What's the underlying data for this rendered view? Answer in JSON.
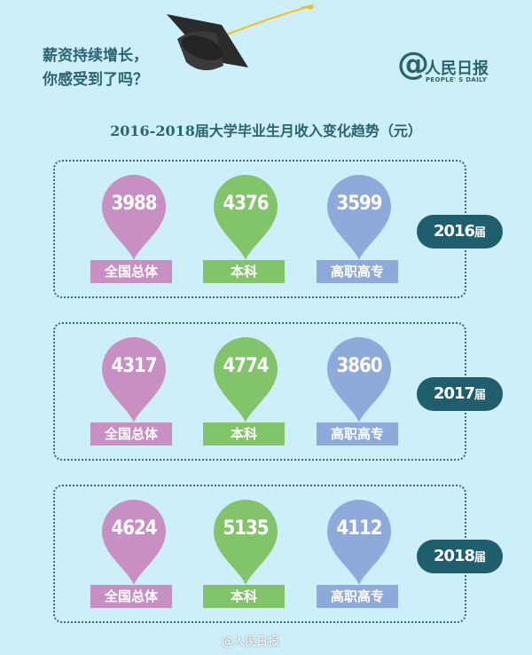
{
  "header": {
    "slogan_line1": "薪资持续增长，",
    "slogan_line2": "你感受到了吗？",
    "logo_name": "人民日报",
    "logo_en": "PEOPLE' S DAILY",
    "title": "2016-2018届大学毕业生月收入变化趋势（元）"
  },
  "categories": [
    "全国总体",
    "本科",
    "高职高专"
  ],
  "colors": {
    "overall": "#c88fc3",
    "bachelor": "#82c46a",
    "vocational": "#8daadb",
    "badge": "#1f5e6d",
    "background": "#cdeffa"
  },
  "cohorts": [
    {
      "year": "2016",
      "suffix": "届",
      "values": [
        "3988",
        "4376",
        "3599"
      ]
    },
    {
      "year": "2017",
      "suffix": "届",
      "values": [
        "4317",
        "4774",
        "3860"
      ]
    },
    {
      "year": "2018",
      "suffix": "届",
      "values": [
        "4624",
        "5135",
        "4112"
      ]
    }
  ],
  "watermark": "@人民日报"
}
